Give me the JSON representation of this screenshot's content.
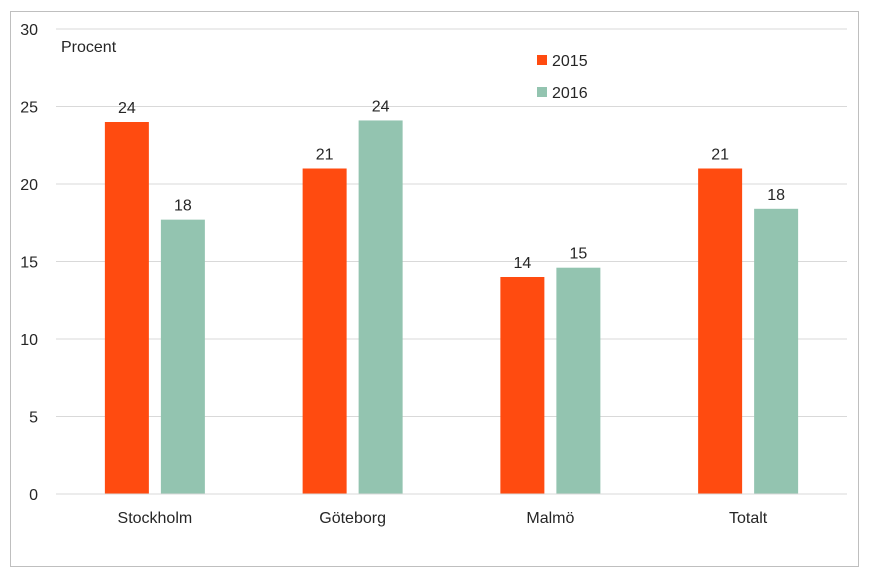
{
  "chart_data": {
    "type": "bar",
    "ylabel": "Procent",
    "ylim": [
      0,
      30
    ],
    "yticks": [
      0,
      5,
      10,
      15,
      20,
      25,
      30
    ],
    "grid": true,
    "legend_position": "top-center",
    "categories": [
      "Stockholm",
      "Göteborg",
      "Malmö",
      "Totalt"
    ],
    "series": [
      {
        "name": "2015",
        "color": "#ff4b10",
        "values": [
          24,
          21,
          14,
          21
        ],
        "labels": [
          "24",
          "21",
          "14",
          "21"
        ]
      },
      {
        "name": "2016",
        "color": "#93c4b0",
        "values": [
          17.7,
          24.1,
          14.6,
          18.4
        ],
        "labels": [
          "18",
          "24",
          "15",
          "18"
        ]
      }
    ]
  }
}
